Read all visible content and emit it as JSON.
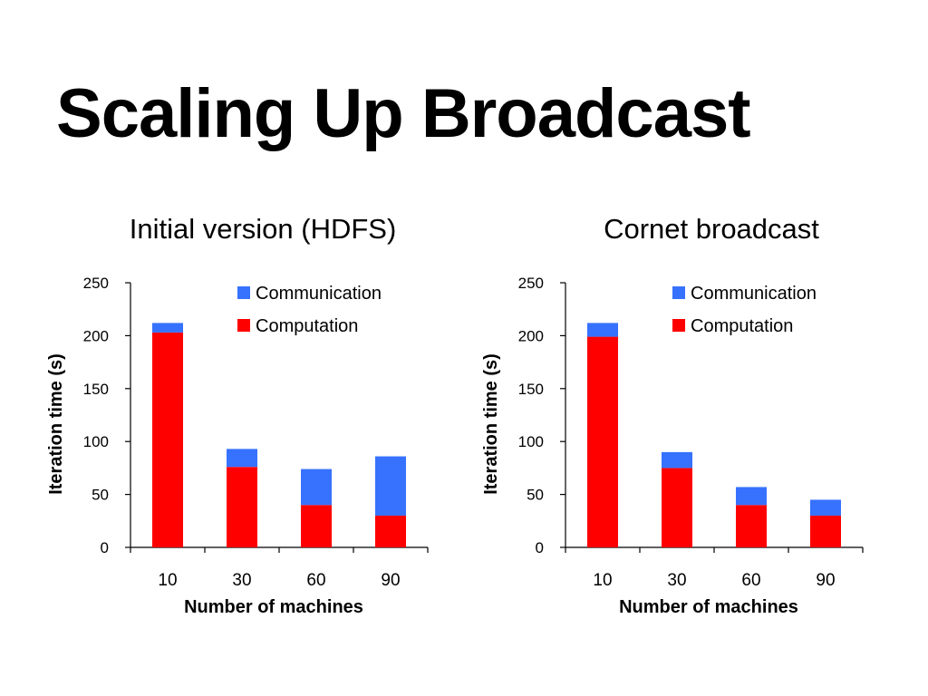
{
  "slide": {
    "title": "Scaling Up Broadcast"
  },
  "colors": {
    "communication": "#3772ff",
    "computation": "#ff0000",
    "axis": "#000000"
  },
  "chart_data": [
    {
      "type": "bar",
      "stacked": true,
      "title": "Initial version (HDFS)",
      "categories": [
        "10",
        "30",
        "60",
        "90"
      ],
      "series": [
        {
          "name": "Computation",
          "color": "#ff0000",
          "values": [
            203,
            76,
            40,
            30
          ]
        },
        {
          "name": "Communication",
          "color": "#3772ff",
          "values": [
            9,
            17,
            34,
            56
          ]
        }
      ],
      "xlabel": "Number of machines",
      "ylabel": "Iteration time (s)",
      "ylim": [
        0,
        250
      ],
      "yticks": [
        "0",
        "50",
        "100",
        "150",
        "200",
        "250"
      ],
      "legend": {
        "position": "top-right",
        "items": [
          "Communication",
          "Computation"
        ]
      },
      "grid": false
    },
    {
      "type": "bar",
      "stacked": true,
      "title": "Cornet broadcast",
      "categories": [
        "10",
        "30",
        "60",
        "90"
      ],
      "series": [
        {
          "name": "Computation",
          "color": "#ff0000",
          "values": [
            199,
            75,
            40,
            30
          ]
        },
        {
          "name": "Communication",
          "color": "#3772ff",
          "values": [
            13,
            15,
            17,
            15
          ]
        }
      ],
      "xlabel": "Number of machines",
      "ylabel": "Iteration time (s)",
      "ylim": [
        0,
        250
      ],
      "yticks": [
        "0",
        "50",
        "100",
        "150",
        "200",
        "250"
      ],
      "legend": {
        "position": "top-right",
        "items": [
          "Communication",
          "Computation"
        ]
      },
      "grid": false
    }
  ]
}
